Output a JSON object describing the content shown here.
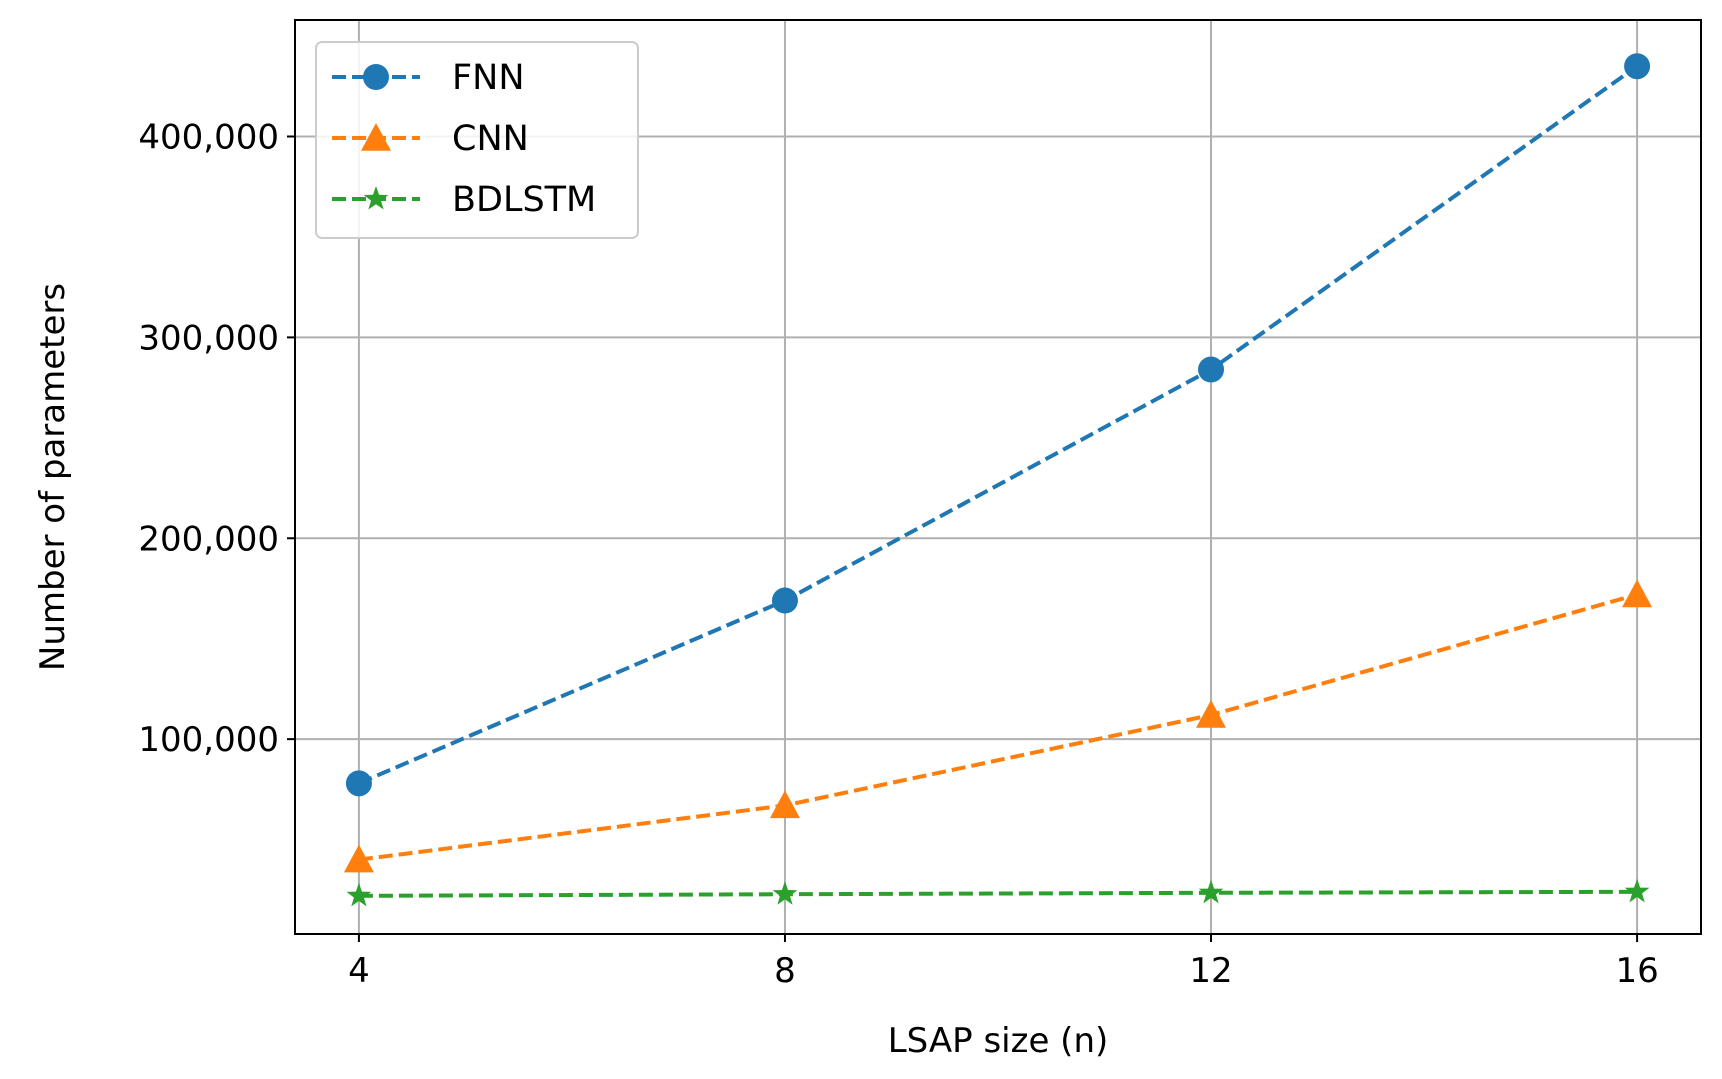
{
  "chart_data": {
    "type": "line",
    "title": "",
    "xlabel": "LSAP size (n)",
    "ylabel": "Number of parameters",
    "x": [
      4,
      8,
      12,
      16
    ],
    "xticks": [
      "4",
      "8",
      "12",
      "16"
    ],
    "yticks": [
      {
        "value": 100000,
        "label": "100,000"
      },
      {
        "value": 200000,
        "label": "200,000"
      },
      {
        "value": 300000,
        "label": "300,000"
      },
      {
        "value": 400000,
        "label": "400,000"
      }
    ],
    "xlim": [
      3.4,
      16.6
    ],
    "ylim": [
      3000,
      458000
    ],
    "grid": true,
    "legend_position": "top-left",
    "series": [
      {
        "name": "FNN",
        "values": [
          78000,
          169000,
          284000,
          435000
        ],
        "color": "#1f77b4",
        "marker": "circle",
        "linestyle": "dashed"
      },
      {
        "name": "CNN",
        "values": [
          40000,
          67000,
          112000,
          172000
        ],
        "color": "#ff7f0e",
        "marker": "triangle",
        "linestyle": "dashed"
      },
      {
        "name": "BDLSTM",
        "values": [
          22000,
          22800,
          23500,
          24000
        ],
        "color": "#2ca02c",
        "marker": "star",
        "linestyle": "dashed"
      }
    ]
  }
}
